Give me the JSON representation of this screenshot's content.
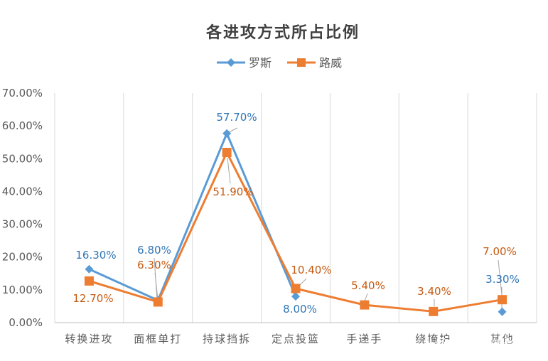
{
  "chart_data": {
    "type": "line",
    "title": "各进攻方式所占比例",
    "categories": [
      "转换进攻",
      "面框单打",
      "持球挡拆",
      "定点投篮",
      "手递手",
      "绕掩护",
      "其他"
    ],
    "series": [
      {
        "name": "罗斯",
        "values": [
          16.3,
          6.8,
          57.7,
          8.0,
          null,
          null,
          3.3
        ],
        "labels": [
          "16.30%",
          "6.80%",
          "57.70%",
          "8.00%",
          "",
          "",
          "3.30%"
        ],
        "color": "#5B9BD5",
        "label_color": "#2E75B6",
        "marker": "diamond"
      },
      {
        "name": "路威",
        "values": [
          12.7,
          6.3,
          51.9,
          10.4,
          5.4,
          3.4,
          7.0
        ],
        "labels": [
          "12.70%",
          "6.30%",
          "51.90%",
          "10.40%",
          "5.40%",
          "3.40%",
          "7.00%"
        ],
        "color": "#ED7D31",
        "label_color": "#C55A11",
        "marker": "square"
      }
    ],
    "y_ticks": [
      "0.00%",
      "10.00%",
      "20.00%",
      "30.00%",
      "40.00%",
      "50.00%",
      "60.00%",
      "70.00%"
    ],
    "ylim": [
      0,
      70
    ],
    "grid": true,
    "legend_position": "top"
  },
  "watermark": "头条 @运动物语"
}
